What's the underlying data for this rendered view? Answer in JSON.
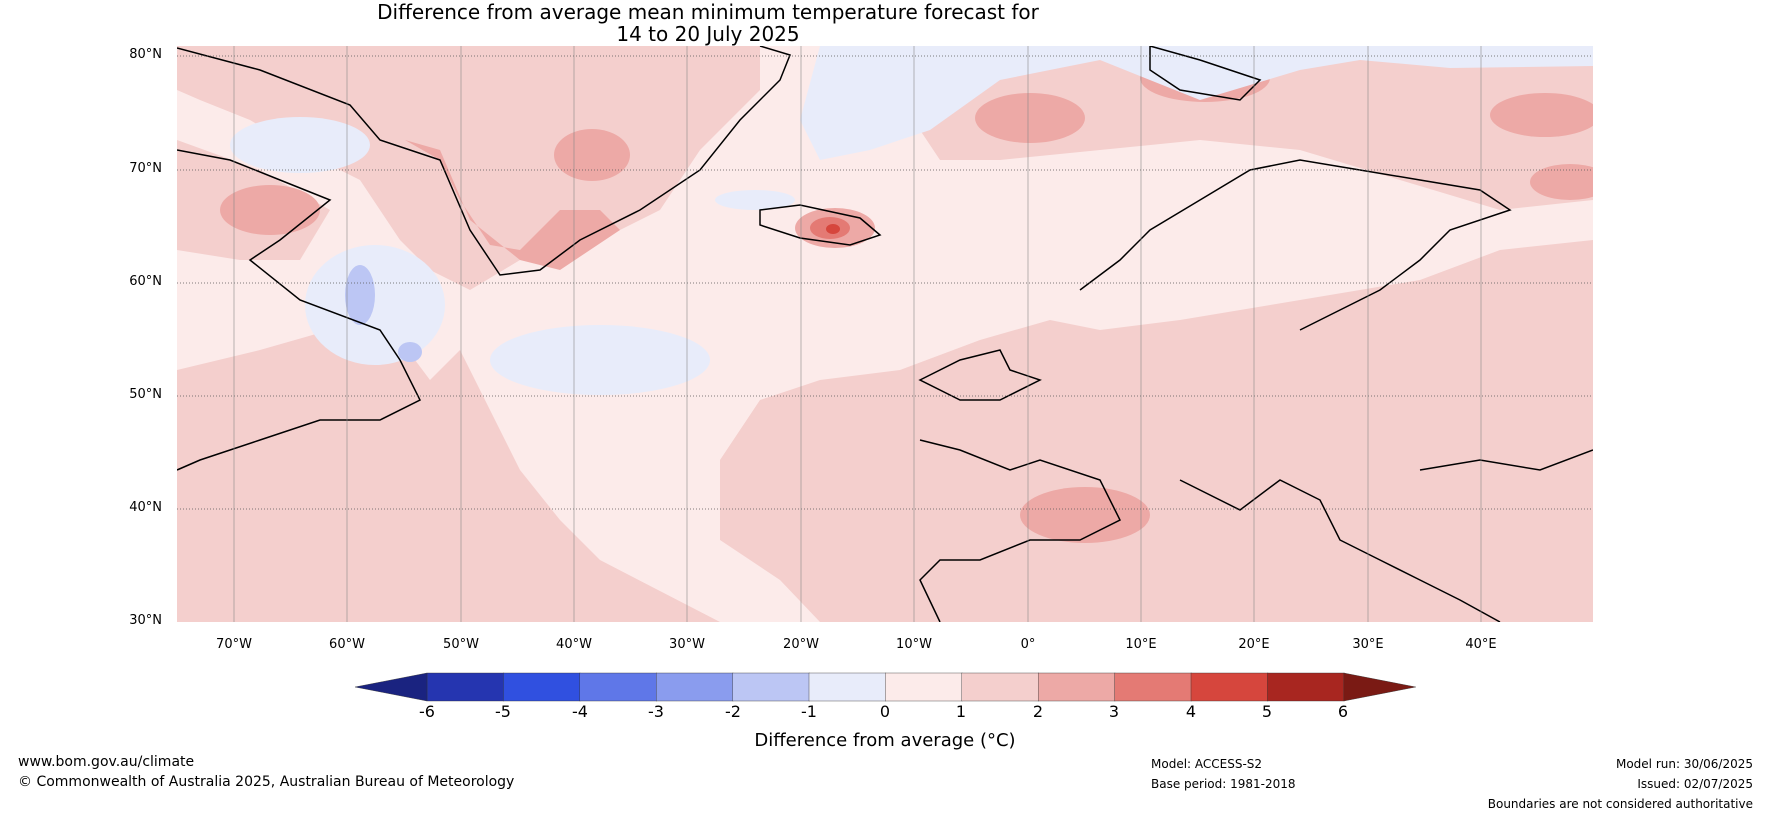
{
  "title": {
    "line1": "Difference from average mean minimum temperature forecast for",
    "line2": "14 to 20 July 2025"
  },
  "lat_labels": [
    "80°N",
    "70°N",
    "60°N",
    "50°N",
    "40°N",
    "30°N"
  ],
  "lon_labels": [
    "70°W",
    "60°W",
    "50°W",
    "40°W",
    "30°W",
    "20°W",
    "10°W",
    "0°",
    "10°E",
    "20°E",
    "30°E",
    "40°E"
  ],
  "colorbar": {
    "ticks": [
      "-6",
      "-5",
      "-4",
      "-3",
      "-2",
      "-1",
      "0",
      "1",
      "2",
      "3",
      "4",
      "5",
      "6"
    ],
    "colors": [
      "#2535b0",
      "#3050e0",
      "#5f77e8",
      "#8a9cee",
      "#bcc6f4",
      "#e8ecfa",
      "#fcebea",
      "#f4cfcd",
      "#eda9a6",
      "#e47a74",
      "#d6463d",
      "#a82620"
    ],
    "under_color": "#1a2380",
    "over_color": "#7a1a14",
    "label": "Difference from average (°C)"
  },
  "footer": {
    "website": "www.bom.gov.au/climate",
    "copyright": "© Commonwealth of Australia 2025, Australian Bureau of Meteorology",
    "model": "Model: ACCESS-S2",
    "base_period": "Base period: 1981-2018",
    "model_run": "Model run: 30/06/2025",
    "issued": "Issued: 02/07/2025",
    "disclaimer": "Boundaries are not considered authoritative"
  }
}
